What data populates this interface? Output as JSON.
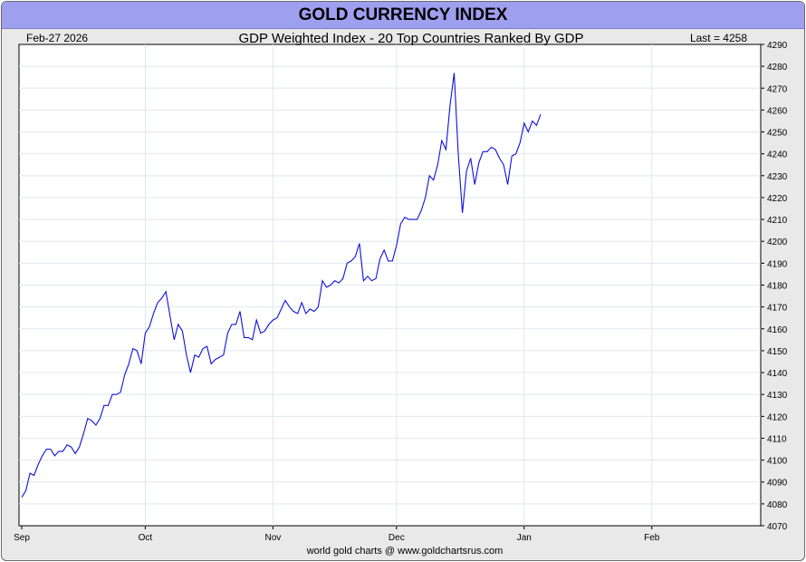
{
  "title": "GOLD CURRENCY INDEX",
  "date_label": "Feb-27  2026",
  "subtitle": "GDP Weighted Index - 20 Top Countries Ranked By GDP",
  "last_label": "Last = 4258",
  "footer": "world gold charts @ www.goldchartsrus.com",
  "colors": {
    "line": "#1010dd",
    "title_bar": "#9f9ff0",
    "background": "#e9e9e9",
    "plot": "#ffffff",
    "grid": "#dfe8ee"
  },
  "chart_data": {
    "type": "line",
    "title": "GOLD CURRENCY INDEX",
    "subtitle": "GDP Weighted Index - 20 Top Countries Ranked By GDP",
    "ylim": [
      4070,
      4290
    ],
    "y_ticks": [
      4070,
      4080,
      4090,
      4100,
      4110,
      4120,
      4130,
      4140,
      4150,
      4160,
      4170,
      4180,
      4190,
      4200,
      4210,
      4220,
      4230,
      4240,
      4250,
      4260,
      4270,
      4280,
      4290
    ],
    "x_ticks": [
      {
        "label": "Sep",
        "date": "2025-09-01"
      },
      {
        "label": "Oct",
        "date": "2025-10-01"
      },
      {
        "label": "Nov",
        "date": "2025-11-01"
      },
      {
        "label": "Dec",
        "date": "2025-12-01"
      },
      {
        "label": "Jan",
        "date": "2026-01-01"
      },
      {
        "label": "Feb",
        "date": "2026-02-01"
      }
    ],
    "x_end": "2026-02-27",
    "grid": true,
    "series": [
      {
        "points": [
          [
            "2025-09-01",
            4083
          ],
          [
            "2025-09-02",
            4086
          ],
          [
            "2025-09-03",
            4094
          ],
          [
            "2025-09-04",
            4093
          ],
          [
            "2025-09-05",
            4098
          ],
          [
            "2025-09-06",
            4102
          ],
          [
            "2025-09-07",
            4105
          ],
          [
            "2025-09-08",
            4105
          ],
          [
            "2025-09-09",
            4102
          ],
          [
            "2025-09-10",
            4104
          ],
          [
            "2025-09-11",
            4104
          ],
          [
            "2025-09-12",
            4107
          ],
          [
            "2025-09-13",
            4106
          ],
          [
            "2025-09-14",
            4103
          ],
          [
            "2025-09-15",
            4106
          ],
          [
            "2025-09-16",
            4112
          ],
          [
            "2025-09-17",
            4119
          ],
          [
            "2025-09-18",
            4118
          ],
          [
            "2025-09-19",
            4116
          ],
          [
            "2025-09-20",
            4119
          ],
          [
            "2025-09-21",
            4125
          ],
          [
            "2025-09-22",
            4125
          ],
          [
            "2025-09-23",
            4130
          ],
          [
            "2025-09-24",
            4130
          ],
          [
            "2025-09-25",
            4131
          ],
          [
            "2025-09-26",
            4139
          ],
          [
            "2025-09-27",
            4144
          ],
          [
            "2025-09-28",
            4151
          ],
          [
            "2025-09-29",
            4150
          ],
          [
            "2025-09-30",
            4144
          ],
          [
            "2025-10-01",
            4158
          ],
          [
            "2025-10-02",
            4161
          ],
          [
            "2025-10-03",
            4167
          ],
          [
            "2025-10-04",
            4172
          ],
          [
            "2025-10-05",
            4174
          ],
          [
            "2025-10-06",
            4177
          ],
          [
            "2025-10-07",
            4166
          ],
          [
            "2025-10-08",
            4155
          ],
          [
            "2025-10-09",
            4162
          ],
          [
            "2025-10-10",
            4159
          ],
          [
            "2025-10-11",
            4148
          ],
          [
            "2025-10-12",
            4140
          ],
          [
            "2025-10-13",
            4148
          ],
          [
            "2025-10-14",
            4147
          ],
          [
            "2025-10-15",
            4151
          ],
          [
            "2025-10-16",
            4152
          ],
          [
            "2025-10-17",
            4144
          ],
          [
            "2025-10-18",
            4146
          ],
          [
            "2025-10-19",
            4147
          ],
          [
            "2025-10-20",
            4148
          ],
          [
            "2025-10-21",
            4158
          ],
          [
            "2025-10-22",
            4162
          ],
          [
            "2025-10-23",
            4162
          ],
          [
            "2025-10-24",
            4168
          ],
          [
            "2025-10-25",
            4156
          ],
          [
            "2025-10-26",
            4156
          ],
          [
            "2025-10-27",
            4155
          ],
          [
            "2025-10-28",
            4164
          ],
          [
            "2025-10-29",
            4158
          ],
          [
            "2025-10-30",
            4159
          ],
          [
            "2025-10-31",
            4162
          ],
          [
            "2025-11-01",
            4164
          ],
          [
            "2025-11-02",
            4165
          ],
          [
            "2025-11-03",
            4169
          ],
          [
            "2025-11-04",
            4173
          ],
          [
            "2025-11-05",
            4170
          ],
          [
            "2025-11-06",
            4168
          ],
          [
            "2025-11-07",
            4167
          ],
          [
            "2025-11-08",
            4172
          ],
          [
            "2025-11-09",
            4167
          ],
          [
            "2025-11-10",
            4169
          ],
          [
            "2025-11-11",
            4168
          ],
          [
            "2025-11-12",
            4170
          ],
          [
            "2025-11-13",
            4182
          ],
          [
            "2025-11-14",
            4179
          ],
          [
            "2025-11-15",
            4180
          ],
          [
            "2025-11-16",
            4182
          ],
          [
            "2025-11-17",
            4181
          ],
          [
            "2025-11-18",
            4183
          ],
          [
            "2025-11-19",
            4190
          ],
          [
            "2025-11-20",
            4191
          ],
          [
            "2025-11-21",
            4193
          ],
          [
            "2025-11-22",
            4199
          ],
          [
            "2025-11-23",
            4182
          ],
          [
            "2025-11-24",
            4184
          ],
          [
            "2025-11-25",
            4182
          ],
          [
            "2025-11-26",
            4183
          ],
          [
            "2025-11-27",
            4192
          ],
          [
            "2025-11-28",
            4196
          ],
          [
            "2025-11-29",
            4191
          ],
          [
            "2025-11-30",
            4191
          ],
          [
            "2025-12-01",
            4198
          ],
          [
            "2025-12-02",
            4208
          ],
          [
            "2025-12-03",
            4211
          ],
          [
            "2025-12-04",
            4210
          ],
          [
            "2025-12-05",
            4210
          ],
          [
            "2025-12-06",
            4210
          ],
          [
            "2025-12-07",
            4214
          ],
          [
            "2025-12-08",
            4220
          ],
          [
            "2025-12-09",
            4230
          ],
          [
            "2025-12-10",
            4228
          ],
          [
            "2025-12-11",
            4235
          ],
          [
            "2025-12-12",
            4246
          ],
          [
            "2025-12-13",
            4242
          ],
          [
            "2025-12-14",
            4262
          ],
          [
            "2025-12-15",
            4277
          ],
          [
            "2025-12-16",
            4240
          ],
          [
            "2025-12-17",
            4213
          ],
          [
            "2025-12-18",
            4232
          ],
          [
            "2025-12-19",
            4238
          ],
          [
            "2025-12-20",
            4226
          ],
          [
            "2025-12-21",
            4236
          ],
          [
            "2025-12-22",
            4241
          ],
          [
            "2025-12-23",
            4241
          ],
          [
            "2025-12-24",
            4243
          ],
          [
            "2025-12-25",
            4242
          ],
          [
            "2025-12-26",
            4238
          ],
          [
            "2025-12-27",
            4235
          ],
          [
            "2025-12-28",
            4226
          ],
          [
            "2025-12-29",
            4239
          ],
          [
            "2025-12-30",
            4240
          ],
          [
            "2025-12-31",
            4245
          ],
          [
            "2026-01-01",
            4254
          ],
          [
            "2026-01-02",
            4250
          ],
          [
            "2026-01-03",
            4255
          ],
          [
            "2026-01-04",
            4253
          ],
          [
            "2026-01-05",
            4258
          ]
        ]
      }
    ]
  }
}
